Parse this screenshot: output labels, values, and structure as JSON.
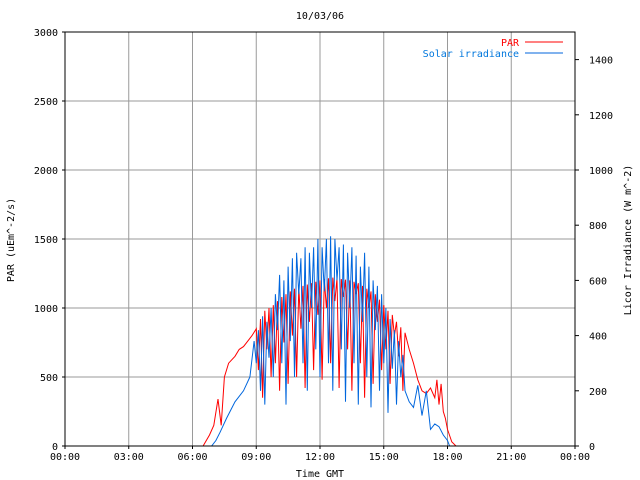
{
  "chart_data": {
    "type": "line",
    "title": "10/03/06",
    "xlabel": "Time GMT",
    "ylabel_left": "PAR (uEm^-2/s)",
    "ylabel_right": "Licor Irradiance (W m^-2)",
    "x_unit": "hours GMT",
    "xlim": [
      0,
      24
    ],
    "ylim_left": [
      0,
      3000
    ],
    "ylim_right": [
      0,
      1500
    ],
    "grid": true,
    "legend_position": "top-right",
    "x_ticks": [
      {
        "value": 0,
        "label": "00:00"
      },
      {
        "value": 3,
        "label": "03:00"
      },
      {
        "value": 6,
        "label": "06:00"
      },
      {
        "value": 9,
        "label": "09:00"
      },
      {
        "value": 12,
        "label": "12:00"
      },
      {
        "value": 15,
        "label": "15:00"
      },
      {
        "value": 18,
        "label": "18:00"
      },
      {
        "value": 21,
        "label": "21:00"
      },
      {
        "value": 24,
        "label": "00:00"
      }
    ],
    "y_ticks_left": [
      {
        "value": 0,
        "label": "0"
      },
      {
        "value": 500,
        "label": "500"
      },
      {
        "value": 1000,
        "label": "1000"
      },
      {
        "value": 1500,
        "label": "1500"
      },
      {
        "value": 2000,
        "label": "2000"
      },
      {
        "value": 2500,
        "label": "2500"
      },
      {
        "value": 3000,
        "label": "3000"
      }
    ],
    "y_ticks_right": [
      {
        "value": 0,
        "label": "0"
      },
      {
        "value": 200,
        "label": "200"
      },
      {
        "value": 400,
        "label": "400"
      },
      {
        "value": 600,
        "label": "600"
      },
      {
        "value": 800,
        "label": "800"
      },
      {
        "value": 1000,
        "label": "1000"
      },
      {
        "value": 1200,
        "label": "1200"
      },
      {
        "value": 1400,
        "label": "1400"
      }
    ],
    "series": [
      {
        "name": "PAR",
        "axis": "left",
        "color": "#ff0000",
        "x": [
          0,
          6.5,
          6.8,
          7.0,
          7.2,
          7.35,
          7.5,
          7.7,
          8.0,
          8.2,
          8.4,
          8.6,
          8.8,
          9.0,
          9.1,
          9.2,
          9.3,
          9.4,
          9.5,
          9.6,
          9.7,
          9.8,
          9.9,
          10.0,
          10.1,
          10.2,
          10.3,
          10.4,
          10.5,
          10.6,
          10.7,
          10.8,
          10.9,
          11.0,
          11.1,
          11.2,
          11.3,
          11.4,
          11.5,
          11.6,
          11.7,
          11.8,
          11.9,
          12.0,
          12.1,
          12.2,
          12.3,
          12.4,
          12.5,
          12.6,
          12.7,
          12.8,
          12.9,
          13.0,
          13.1,
          13.2,
          13.3,
          13.4,
          13.5,
          13.6,
          13.7,
          13.8,
          13.9,
          14.0,
          14.1,
          14.2,
          14.3,
          14.4,
          14.5,
          14.6,
          14.7,
          14.8,
          14.9,
          15.0,
          15.1,
          15.2,
          15.3,
          15.4,
          15.5,
          15.6,
          15.7,
          15.8,
          15.9,
          16.0,
          16.2,
          16.4,
          16.6,
          16.8,
          17.0,
          17.2,
          17.4,
          17.5,
          17.6,
          17.7,
          17.8,
          17.9,
          18.0,
          18.2,
          18.4,
          24
        ],
        "values": [
          0,
          0,
          80,
          150,
          340,
          150,
          500,
          600,
          650,
          700,
          720,
          760,
          800,
          850,
          550,
          920,
          350,
          980,
          700,
          1000,
          500,
          1020,
          600,
          1050,
          400,
          1080,
          750,
          1100,
          450,
          1120,
          800,
          1140,
          500,
          1150,
          850,
          1160,
          420,
          1170,
          900,
          1180,
          550,
          1190,
          950,
          1200,
          480,
          1210,
          1000,
          1215,
          600,
          1220,
          1050,
          1215,
          420,
          1210,
          1080,
          1205,
          700,
          1200,
          400,
          1190,
          1100,
          1180,
          600,
          1160,
          350,
          1140,
          1000,
          1120,
          450,
          1100,
          900,
          1060,
          550,
          1020,
          700,
          980,
          450,
          950,
          800,
          900,
          650,
          860,
          400,
          820,
          700,
          600,
          480,
          400,
          380,
          420,
          350,
          480,
          300,
          450,
          250,
          200,
          120,
          30,
          0,
          0
        ]
      },
      {
        "name": "Solar irradiance",
        "axis": "right",
        "color": "#0066dd",
        "x": [
          0,
          6.9,
          7.1,
          7.3,
          7.6,
          8.0,
          8.4,
          8.7,
          8.9,
          9.0,
          9.1,
          9.2,
          9.3,
          9.4,
          9.5,
          9.6,
          9.7,
          9.8,
          9.9,
          10.0,
          10.1,
          10.2,
          10.3,
          10.4,
          10.5,
          10.6,
          10.7,
          10.8,
          10.9,
          11.0,
          11.1,
          11.2,
          11.3,
          11.4,
          11.5,
          11.6,
          11.7,
          11.8,
          11.9,
          12.0,
          12.1,
          12.2,
          12.3,
          12.4,
          12.5,
          12.6,
          12.7,
          12.8,
          12.9,
          13.0,
          13.1,
          13.2,
          13.3,
          13.4,
          13.5,
          13.6,
          13.7,
          13.8,
          13.9,
          14.0,
          14.1,
          14.2,
          14.3,
          14.4,
          14.5,
          14.6,
          14.7,
          14.8,
          14.9,
          15.0,
          15.1,
          15.2,
          15.3,
          15.4,
          15.5,
          15.6,
          15.7,
          15.8,
          15.9,
          16.0,
          16.2,
          16.4,
          16.6,
          16.8,
          17.0,
          17.2,
          17.4,
          17.6,
          17.8,
          18.0,
          18.1,
          24
        ],
        "values": [
          0,
          0,
          20,
          50,
          100,
          160,
          200,
          250,
          380,
          300,
          420,
          200,
          470,
          150,
          450,
          320,
          500,
          250,
          550,
          420,
          620,
          300,
          600,
          150,
          650,
          380,
          680,
          250,
          700,
          550,
          680,
          300,
          720,
          200,
          700,
          500,
          720,
          350,
          750,
          250,
          720,
          560,
          750,
          300,
          760,
          200,
          750,
          600,
          720,
          350,
          730,
          160,
          700,
          500,
          720,
          300,
          690,
          150,
          650,
          450,
          700,
          250,
          650,
          140,
          600,
          420,
          580,
          200,
          550,
          300,
          500,
          120,
          460,
          280,
          420,
          150,
          380,
          250,
          330,
          200,
          160,
          140,
          220,
          110,
          200,
          60,
          80,
          70,
          40,
          20,
          0,
          0
        ]
      }
    ]
  }
}
